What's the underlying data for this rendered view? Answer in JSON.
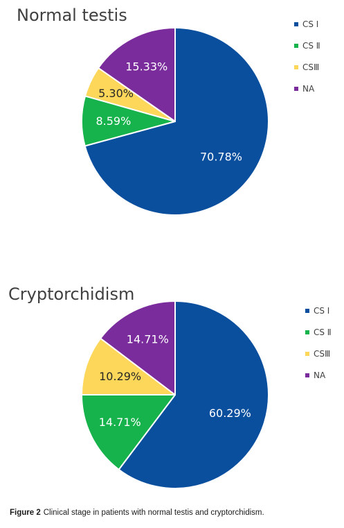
{
  "chart_data": [
    {
      "type": "pie",
      "title": "Normal testis",
      "categories": [
        "CS Ⅰ",
        "CS Ⅱ",
        "CSⅢ",
        "NA"
      ],
      "values": [
        70.78,
        8.59,
        5.3,
        15.33
      ],
      "labels": [
        "70.78%",
        "8.59%",
        "5.30%",
        "15.33%"
      ],
      "colors": [
        "#0a4f9e",
        "#16b24b",
        "#fdd75a",
        "#7b2c9c"
      ],
      "legend_position": "right"
    },
    {
      "type": "pie",
      "title": "Cryptorchidism",
      "categories": [
        "CS Ⅰ",
        "CS Ⅱ",
        "CSⅢ",
        "NA"
      ],
      "values": [
        60.29,
        14.71,
        10.29,
        14.71
      ],
      "labels": [
        "60.29%",
        "14.71%",
        "10.29%",
        "14.71%"
      ],
      "colors": [
        "#0a4f9e",
        "#16b24b",
        "#fdd75a",
        "#7b2c9c"
      ],
      "legend_position": "right"
    }
  ],
  "caption": {
    "label": "Figure 2",
    "text": "Clinical stage in patients with normal testis and cryptorchidism."
  }
}
